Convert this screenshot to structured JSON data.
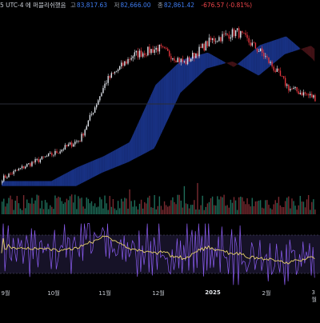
{
  "header": {
    "timezone_text": "5 UTC-4 에 퍼블리쉬했음",
    "high_label": "고",
    "high_value": "83,817.63",
    "low_label": "저",
    "low_value": "82,666.00",
    "close_label": "종",
    "close_value": "82,861.42",
    "change_value": "-676.57 (-0.81%)"
  },
  "x_axis_labels": [
    "9월",
    "10월",
    "11월",
    "12월",
    "2025",
    "2월",
    "3월"
  ],
  "colors": {
    "up_candle": "#dfe3ea",
    "down_candle": "#e0343c",
    "up_volume": "#1f6e5a",
    "down_volume": "#7a2a30",
    "cloud_bull": "#1c3a9a",
    "cloud_bear": "#4a1418",
    "rsi_line": "#8a5cf0",
    "rsi_ma": "#e8d36a",
    "rsi_band": "#1b1630"
  },
  "chart_data": {
    "type": "candlestick",
    "title": "",
    "indicators": [
      "ichimoku-cloud",
      "volume",
      "rsi"
    ],
    "x_axis": [
      "9월",
      "10월",
      "11월",
      "12월",
      "2025",
      "2월",
      "3월"
    ],
    "price_trend": [
      55800,
      60500,
      64200,
      69000,
      88500,
      97000,
      99500,
      94500,
      102000,
      105000,
      97500,
      86000,
      82861
    ],
    "last_close": 82861.42,
    "rsi_range": [
      0,
      100
    ]
  }
}
